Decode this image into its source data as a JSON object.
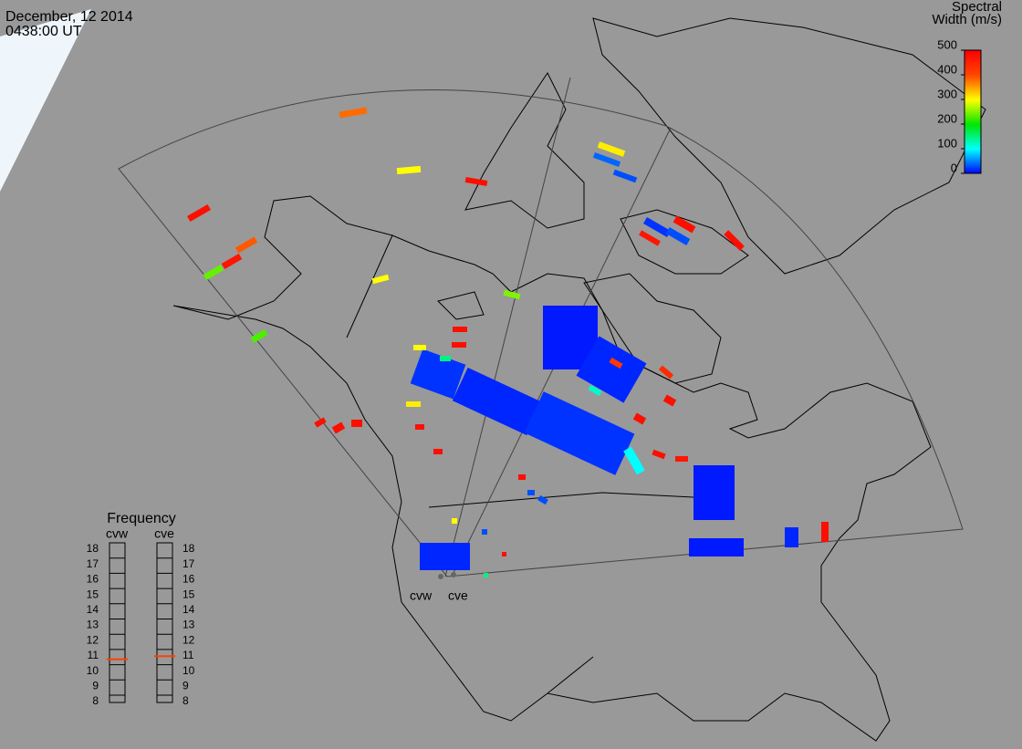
{
  "header": {
    "date": "December, 12 2014",
    "time": "0438:00 UT"
  },
  "colorbar": {
    "title": [
      "Spectral",
      "Width (m/s)"
    ],
    "lim": [
      0,
      500
    ],
    "ticks": [
      0,
      100,
      200,
      300,
      400,
      500
    ]
  },
  "frequency": {
    "title": "Frequency",
    "lim": [
      8,
      18
    ],
    "ticks": [
      8,
      9,
      10,
      11,
      12,
      13,
      14,
      15,
      16,
      17,
      18
    ],
    "radars": [
      {
        "name": "cvw",
        "value": 10.6
      },
      {
        "name": "cve",
        "value": 10.8
      }
    ]
  },
  "stations": [
    "cvw",
    "cve"
  ],
  "cells": [
    380,
    300,
    480,
    390,
    470,
    240,
    230,
    300,
    480,
    250,
    310,
    40,
    30,
    20,
    480,
    470,
    30,
    480,
    10,
    20,
    15,
    20,
    15,
    10,
    10,
    15,
    480,
    300,
    150,
    480,
    480,
    480,
    480,
    480,
    310,
    480,
    480,
    480,
    30,
    30,
    440,
    480,
    480,
    120,
    420,
    480,
    470,
    15,
    300,
    480,
    150,
    30,
    100
  ]
}
